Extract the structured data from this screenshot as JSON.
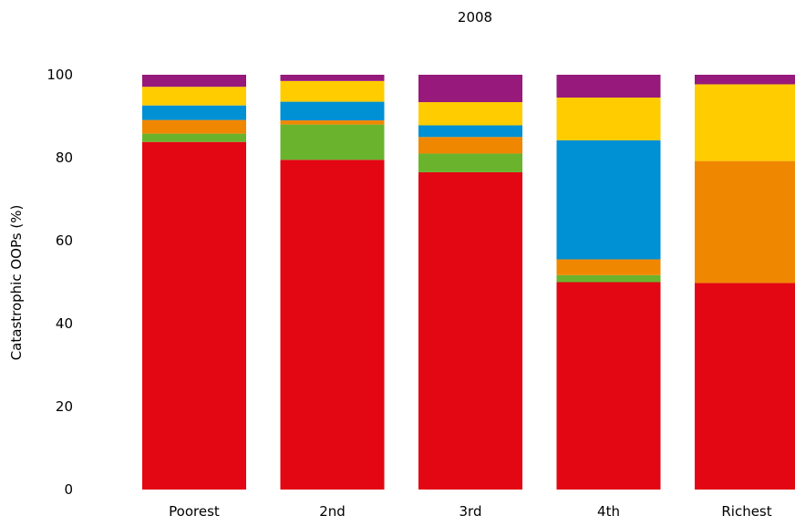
{
  "chart_data": {
    "type": "bar",
    "stacked": true,
    "title": "2008",
    "xlabel": "",
    "ylabel": "Catastrophic OOPs (%)",
    "ylim": [
      0,
      100
    ],
    "yticks": [
      0,
      20,
      40,
      60,
      80,
      100
    ],
    "grid": false,
    "legend": "none",
    "categories": [
      "Poorest",
      "2nd",
      "3rd",
      "4th",
      "Richest"
    ],
    "series": [
      {
        "color": "#e30613",
        "values": [
          83.8,
          79.5,
          76.5,
          50.0,
          49.8
        ]
      },
      {
        "color": "#6ab42d",
        "values": [
          2.0,
          8.5,
          4.5,
          1.7,
          0.0
        ]
      },
      {
        "color": "#f08700",
        "values": [
          3.3,
          1.0,
          4.0,
          3.8,
          29.4
        ]
      },
      {
        "color": "#0090d4",
        "values": [
          3.5,
          4.5,
          2.8,
          28.7,
          0.0
        ]
      },
      {
        "color": "#ffcc00",
        "values": [
          4.5,
          5.0,
          5.6,
          10.3,
          18.5
        ]
      },
      {
        "color": "#96197b",
        "values": [
          2.9,
          1.5,
          6.6,
          5.5,
          2.3
        ]
      }
    ]
  }
}
